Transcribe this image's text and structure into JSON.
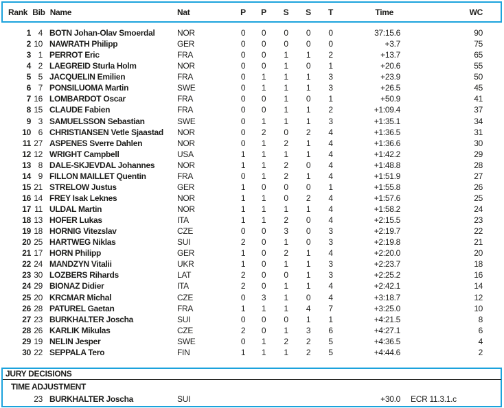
{
  "colors": {
    "border": "#1ba2dc",
    "text": "#1d1d1b"
  },
  "table": {
    "headers": {
      "rank": "Rank",
      "bib": "Bib",
      "name": "Name",
      "nat": "Nat",
      "p1": "P",
      "p2": "P",
      "s1": "S",
      "s2": "S",
      "t": "T",
      "time": "Time",
      "wc": "WC"
    },
    "rows": [
      {
        "rank": "1",
        "bib": "4",
        "name": "BOTN Johan-Olav Smoerdal",
        "nat": "NOR",
        "p1": "0",
        "p2": "0",
        "s1": "0",
        "s2": "0",
        "t": "0",
        "time": "37:15.6",
        "wc": "90"
      },
      {
        "rank": "2",
        "bib": "10",
        "name": "NAWRATH Philipp",
        "nat": "GER",
        "p1": "0",
        "p2": "0",
        "s1": "0",
        "s2": "0",
        "t": "0",
        "time": "+3.7",
        "wc": "75"
      },
      {
        "rank": "3",
        "bib": "1",
        "name": "PERROT Eric",
        "nat": "FRA",
        "p1": "0",
        "p2": "0",
        "s1": "1",
        "s2": "1",
        "t": "2",
        "time": "+13.7",
        "wc": "65"
      },
      {
        "rank": "4",
        "bib": "2",
        "name": "LAEGREID Sturla Holm",
        "nat": "NOR",
        "p1": "0",
        "p2": "0",
        "s1": "1",
        "s2": "0",
        "t": "1",
        "time": "+20.6",
        "wc": "55"
      },
      {
        "rank": "5",
        "bib": "5",
        "name": "JACQUELIN Emilien",
        "nat": "FRA",
        "p1": "0",
        "p2": "1",
        "s1": "1",
        "s2": "1",
        "t": "3",
        "time": "+23.9",
        "wc": "50"
      },
      {
        "rank": "6",
        "bib": "7",
        "name": "PONSILUOMA Martin",
        "nat": "SWE",
        "p1": "0",
        "p2": "1",
        "s1": "1",
        "s2": "1",
        "t": "3",
        "time": "+26.5",
        "wc": "45"
      },
      {
        "rank": "7",
        "bib": "16",
        "name": "LOMBARDOT Oscar",
        "nat": "FRA",
        "p1": "0",
        "p2": "0",
        "s1": "1",
        "s2": "0",
        "t": "1",
        "time": "+50.9",
        "wc": "41"
      },
      {
        "rank": "8",
        "bib": "15",
        "name": "CLAUDE Fabien",
        "nat": "FRA",
        "p1": "0",
        "p2": "0",
        "s1": "1",
        "s2": "1",
        "t": "2",
        "time": "+1:09.4",
        "wc": "37"
      },
      {
        "rank": "9",
        "bib": "3",
        "name": "SAMUELSSON Sebastian",
        "nat": "SWE",
        "p1": "0",
        "p2": "1",
        "s1": "1",
        "s2": "1",
        "t": "3",
        "time": "+1:35.1",
        "wc": "34"
      },
      {
        "rank": "10",
        "bib": "6",
        "name": "CHRISTIANSEN Vetle Sjaastad",
        "nat": "NOR",
        "p1": "0",
        "p2": "2",
        "s1": "0",
        "s2": "2",
        "t": "4",
        "time": "+1:36.5",
        "wc": "31"
      },
      {
        "rank": "11",
        "bib": "27",
        "name": "ASPENES Sverre Dahlen",
        "nat": "NOR",
        "p1": "0",
        "p2": "1",
        "s1": "2",
        "s2": "1",
        "t": "4",
        "time": "+1:36.6",
        "wc": "30"
      },
      {
        "rank": "12",
        "bib": "12",
        "name": "WRIGHT Campbell",
        "nat": "USA",
        "p1": "1",
        "p2": "1",
        "s1": "1",
        "s2": "1",
        "t": "4",
        "time": "+1:42.2",
        "wc": "29"
      },
      {
        "rank": "13",
        "bib": "8",
        "name": "DALE-SKJEVDAL Johannes",
        "nat": "NOR",
        "p1": "1",
        "p2": "1",
        "s1": "2",
        "s2": "0",
        "t": "4",
        "time": "+1:48.8",
        "wc": "28"
      },
      {
        "rank": "14",
        "bib": "9",
        "name": "FILLON MAILLET Quentin",
        "nat": "FRA",
        "p1": "0",
        "p2": "1",
        "s1": "2",
        "s2": "1",
        "t": "4",
        "time": "+1:51.9",
        "wc": "27"
      },
      {
        "rank": "15",
        "bib": "21",
        "name": "STRELOW Justus",
        "nat": "GER",
        "p1": "1",
        "p2": "0",
        "s1": "0",
        "s2": "0",
        "t": "1",
        "time": "+1:55.8",
        "wc": "26"
      },
      {
        "rank": "16",
        "bib": "14",
        "name": "FREY Isak Leknes",
        "nat": "NOR",
        "p1": "1",
        "p2": "1",
        "s1": "0",
        "s2": "2",
        "t": "4",
        "time": "+1:57.6",
        "wc": "25"
      },
      {
        "rank": "17",
        "bib": "11",
        "name": "ULDAL Martin",
        "nat": "NOR",
        "p1": "1",
        "p2": "1",
        "s1": "1",
        "s2": "1",
        "t": "4",
        "time": "+1:58.2",
        "wc": "24"
      },
      {
        "rank": "18",
        "bib": "13",
        "name": "HOFER Lukas",
        "nat": "ITA",
        "p1": "1",
        "p2": "1",
        "s1": "2",
        "s2": "0",
        "t": "4",
        "time": "+2:15.5",
        "wc": "23"
      },
      {
        "rank": "19",
        "bib": "18",
        "name": "HORNIG Vitezslav",
        "nat": "CZE",
        "p1": "0",
        "p2": "0",
        "s1": "3",
        "s2": "0",
        "t": "3",
        "time": "+2:19.7",
        "wc": "22"
      },
      {
        "rank": "20",
        "bib": "25",
        "name": "HARTWEG Niklas",
        "nat": "SUI",
        "p1": "2",
        "p2": "0",
        "s1": "1",
        "s2": "0",
        "t": "3",
        "time": "+2:19.8",
        "wc": "21"
      },
      {
        "rank": "21",
        "bib": "17",
        "name": "HORN Philipp",
        "nat": "GER",
        "p1": "1",
        "p2": "0",
        "s1": "2",
        "s2": "1",
        "t": "4",
        "time": "+2:20.0",
        "wc": "20"
      },
      {
        "rank": "22",
        "bib": "24",
        "name": "MANDZYN Vitalii",
        "nat": "UKR",
        "p1": "1",
        "p2": "0",
        "s1": "1",
        "s2": "1",
        "t": "3",
        "time": "+2:23.7",
        "wc": "18"
      },
      {
        "rank": "23",
        "bib": "30",
        "name": "LOZBERS Rihards",
        "nat": "LAT",
        "p1": "2",
        "p2": "0",
        "s1": "0",
        "s2": "1",
        "t": "3",
        "time": "+2:25.2",
        "wc": "16"
      },
      {
        "rank": "24",
        "bib": "29",
        "name": "BIONAZ Didier",
        "nat": "ITA",
        "p1": "2",
        "p2": "0",
        "s1": "1",
        "s2": "1",
        "t": "4",
        "time": "+2:42.1",
        "wc": "14"
      },
      {
        "rank": "25",
        "bib": "20",
        "name": "KRCMAR Michal",
        "nat": "CZE",
        "p1": "0",
        "p2": "3",
        "s1": "1",
        "s2": "0",
        "t": "4",
        "time": "+3:18.7",
        "wc": "12"
      },
      {
        "rank": "26",
        "bib": "28",
        "name": "PATUREL Gaetan",
        "nat": "FRA",
        "p1": "1",
        "p2": "1",
        "s1": "1",
        "s2": "4",
        "t": "7",
        "time": "+3:25.0",
        "wc": "10"
      },
      {
        "rank": "27",
        "bib": "23",
        "name": "BURKHALTER Joscha",
        "nat": "SUI",
        "p1": "0",
        "p2": "0",
        "s1": "0",
        "s2": "1",
        "t": "1",
        "time": "+4:21.5",
        "wc": "8"
      },
      {
        "rank": "28",
        "bib": "26",
        "name": "KARLIK Mikulas",
        "nat": "CZE",
        "p1": "2",
        "p2": "0",
        "s1": "1",
        "s2": "3",
        "t": "6",
        "time": "+4:27.1",
        "wc": "6"
      },
      {
        "rank": "29",
        "bib": "19",
        "name": "NELIN Jesper",
        "nat": "SWE",
        "p1": "0",
        "p2": "1",
        "s1": "2",
        "s2": "2",
        "t": "5",
        "time": "+4:36.5",
        "wc": "4"
      },
      {
        "rank": "30",
        "bib": "22",
        "name": "SEPPALA Tero",
        "nat": "FIN",
        "p1": "1",
        "p2": "1",
        "s1": "1",
        "s2": "2",
        "t": "5",
        "time": "+4:44.6",
        "wc": "2"
      }
    ]
  },
  "jury": {
    "title": "JURY DECISIONS",
    "section": "TIME ADJUSTMENT",
    "entry": {
      "bib": "23",
      "name": "BURKHALTER Joscha",
      "nat": "SUI",
      "adjustment": "+30.0",
      "rule": "ECR 11.3.1.c"
    }
  }
}
